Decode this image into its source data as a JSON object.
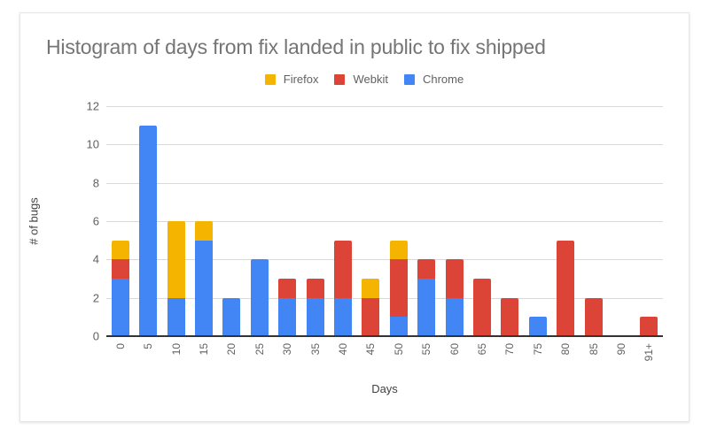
{
  "chart_data": {
    "type": "bar",
    "stacked": true,
    "title": "Histogram of days from fix landed in public to fix shipped",
    "xlabel": "Days",
    "ylabel": "# of bugs",
    "ylim": [
      0,
      12
    ],
    "yticks": [
      0,
      2,
      4,
      6,
      8,
      10,
      12
    ],
    "grid": true,
    "legend_position": "top",
    "categories": [
      "0",
      "5",
      "10",
      "15",
      "20",
      "25",
      "30",
      "35",
      "40",
      "45",
      "50",
      "55",
      "60",
      "65",
      "70",
      "75",
      "80",
      "85",
      "90",
      "91+"
    ],
    "series": [
      {
        "name": "Chrome",
        "color": "#4285F4",
        "values": [
          3,
          11,
          2,
          5,
          2,
          4,
          2,
          2,
          2,
          0,
          1,
          3,
          2,
          0,
          0,
          1,
          0,
          0,
          0,
          0
        ]
      },
      {
        "name": "Webkit",
        "color": "#DB4437",
        "values": [
          1,
          0,
          0,
          0,
          0,
          0,
          1,
          1,
          3,
          2,
          3,
          1,
          2,
          3,
          2,
          0,
          5,
          2,
          0,
          1
        ]
      },
      {
        "name": "Firefox",
        "color": "#F4B400",
        "values": [
          1,
          0,
          4,
          1,
          0,
          0,
          0,
          0,
          0,
          1,
          1,
          0,
          0,
          0,
          0,
          0,
          0,
          0,
          0,
          0
        ]
      }
    ]
  },
  "legend": [
    {
      "label": "Firefox",
      "color": "#F4B400"
    },
    {
      "label": "Webkit",
      "color": "#DB4437"
    },
    {
      "label": "Chrome",
      "color": "#4285F4"
    }
  ]
}
